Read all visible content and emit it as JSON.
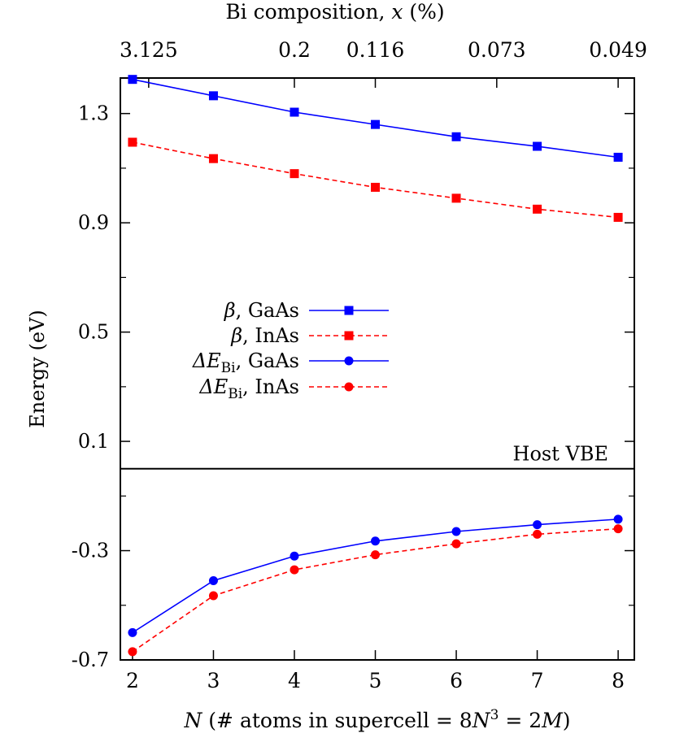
{
  "chart_data": {
    "type": "line",
    "top_axis_title": "Bi composition, x (%)",
    "top_axis_title_parts": {
      "prefix": "Bi composition, ",
      "var": "x",
      "suffix": " (%)"
    },
    "top_ticks": [
      {
        "n": 2.2,
        "label": "3.125"
      },
      {
        "n": 4.0,
        "label": "0.2"
      },
      {
        "n": 5.0,
        "label": "0.116"
      },
      {
        "n": 6.5,
        "label": "0.073"
      },
      {
        "n": 8.0,
        "label": "0.049"
      }
    ],
    "xlabel": "N (# atoms in supercell = 8N3 = 2M)",
    "xlabel_parts": {
      "var_n": "N",
      "mid": " (# atoms in supercell = 8",
      "sup_base": "N",
      "sup": "3",
      "end": " = 2",
      "var_m": "M",
      "close": ")"
    },
    "ylabel": "Energy (eV)",
    "x_ticks": [
      "2",
      "3",
      "4",
      "5",
      "6",
      "7",
      "8"
    ],
    "y_ticks": [
      "1.3",
      "0.9",
      "0.5",
      "0.1",
      "-0.3",
      "-0.7"
    ],
    "xlim": [
      1.85,
      8.2
    ],
    "ylim": [
      -0.7,
      1.43
    ],
    "annotation": "Host VBE",
    "reference_line_y": 0,
    "grid": false,
    "legend_position": "middle-left",
    "series": [
      {
        "name": "β, GaAs",
        "legend_label_parts": {
          "sym": "β",
          "rest": ", GaAs"
        },
        "color": "#0000ff",
        "marker": "square",
        "dash": "solid",
        "x": [
          2,
          3,
          4,
          5,
          6,
          7,
          8
        ],
        "y": [
          1.425,
          1.365,
          1.305,
          1.26,
          1.215,
          1.18,
          1.14
        ]
      },
      {
        "name": "β, InAs",
        "legend_label_parts": {
          "sym": "β",
          "rest": ", InAs"
        },
        "color": "#ff0000",
        "marker": "square",
        "dash": "dashed",
        "x": [
          2,
          3,
          4,
          5,
          6,
          7,
          8
        ],
        "y": [
          1.195,
          1.135,
          1.08,
          1.03,
          0.99,
          0.95,
          0.92
        ]
      },
      {
        "name": "ΔEBi, GaAs",
        "legend_label_parts": {
          "sym": "ΔE",
          "sub": "Bi",
          "rest": ", GaAs"
        },
        "color": "#0000ff",
        "marker": "circle",
        "dash": "solid",
        "x": [
          2,
          3,
          4,
          5,
          6,
          7,
          8
        ],
        "y": [
          -0.6,
          -0.41,
          -0.32,
          -0.265,
          -0.23,
          -0.205,
          -0.185
        ]
      },
      {
        "name": "ΔEBi, InAs",
        "legend_label_parts": {
          "sym": "ΔE",
          "sub": "Bi",
          "rest": ", InAs"
        },
        "color": "#ff0000",
        "marker": "circle",
        "dash": "dashed",
        "x": [
          2,
          3,
          4,
          5,
          6,
          7,
          8
        ],
        "y": [
          -0.67,
          -0.465,
          -0.37,
          -0.315,
          -0.275,
          -0.24,
          -0.22
        ]
      }
    ]
  }
}
